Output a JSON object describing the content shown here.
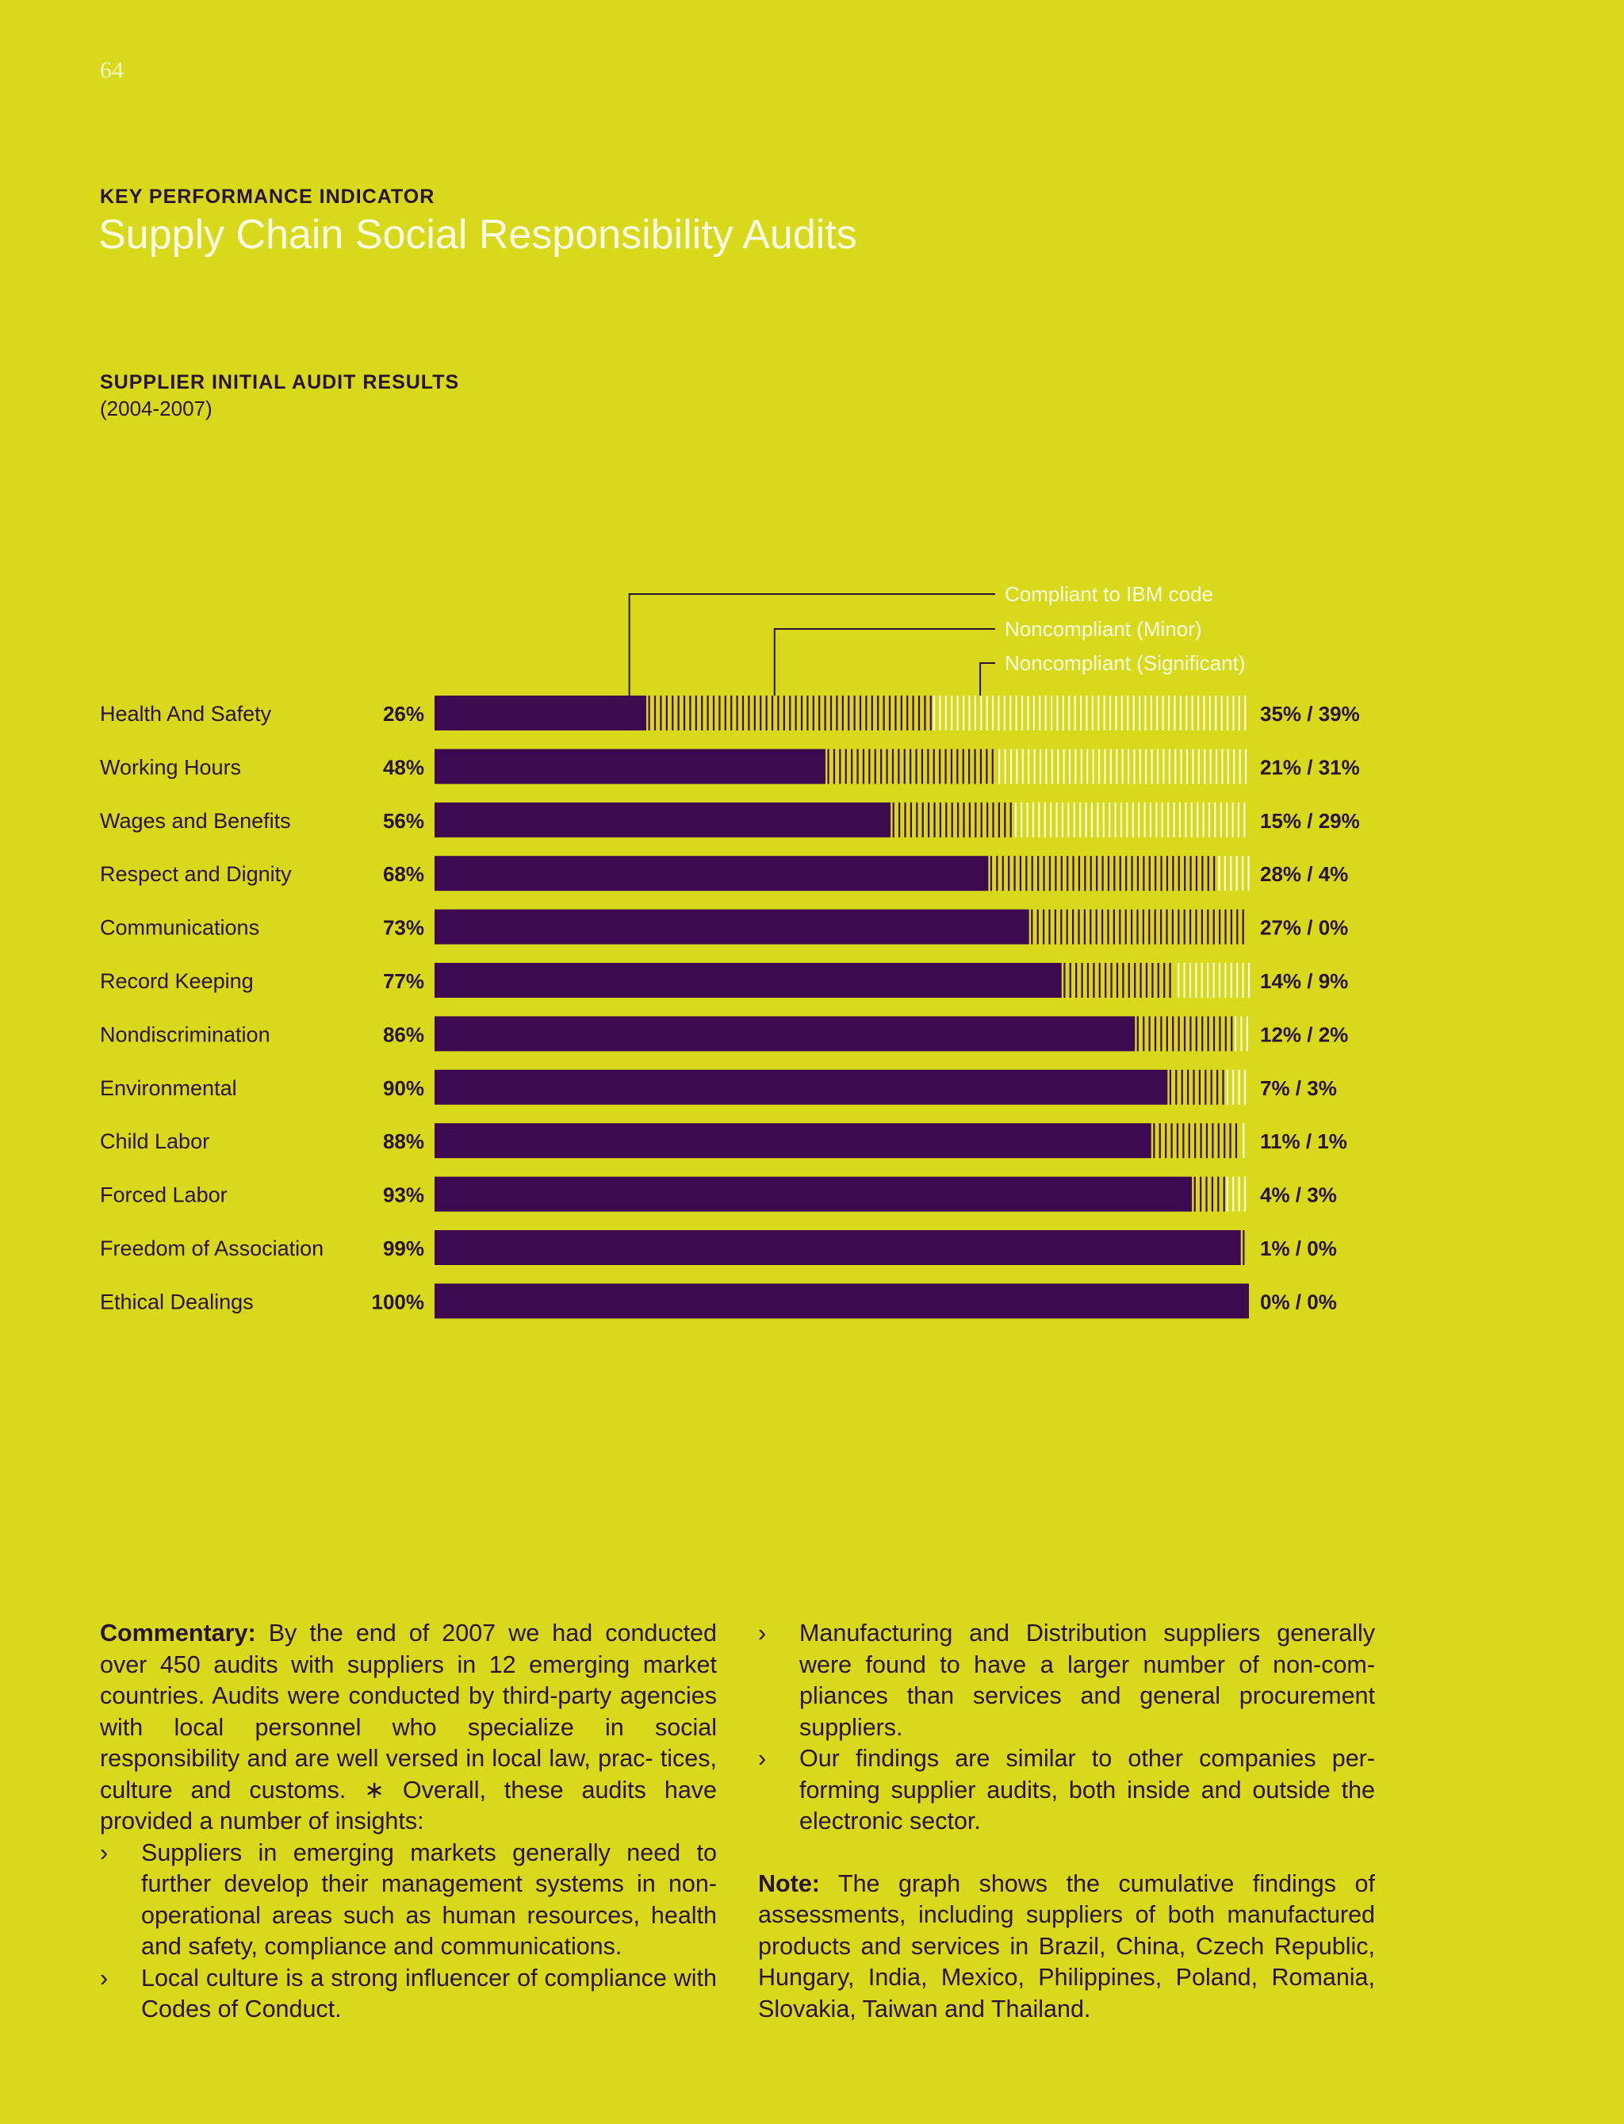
{
  "page_number": "64",
  "header": {
    "kicker": "KEY PERFORMANCE INDICATOR",
    "title": "Supply Chain Social Responsibility Audits"
  },
  "chart_heading": {
    "title": "SUPPLIER INITIAL AUDIT RESULTS",
    "range": "(2004-2007)"
  },
  "chart_data": {
    "type": "bar",
    "stacked": true,
    "orientation": "horizontal",
    "title": "SUPPLIER INITIAL AUDIT RESULTS",
    "subtitle": "(2004-2007)",
    "legend_position": "top-right",
    "categories": [
      "Health And Safety",
      "Working Hours",
      "Wages and Benefits",
      "Respect and Dignity",
      "Communications",
      "Record Keeping",
      "Nondiscrimination",
      "Environmental",
      "Child Labor",
      "Forced Labor",
      "Freedom of Association",
      "Ethical Dealings"
    ],
    "series": [
      {
        "name": "Compliant to IBM code",
        "color": "#3d0a52",
        "values": [
          26,
          48,
          56,
          68,
          73,
          77,
          86,
          90,
          88,
          93,
          99,
          100
        ],
        "labels": [
          "26%",
          "48%",
          "56%",
          "68%",
          "73%",
          "77%",
          "86%",
          "90%",
          "88%",
          "93%",
          "99%",
          "100%"
        ]
      },
      {
        "name": "Noncompliant (Minor)",
        "color": "#3d0a52",
        "values": [
          35,
          21,
          15,
          28,
          27,
          14,
          12,
          7,
          11,
          4,
          1,
          0
        ]
      },
      {
        "name": "Noncompliant (Significant)",
        "color": "#fbfbe6",
        "values": [
          39,
          31,
          29,
          4,
          0,
          9,
          2,
          3,
          1,
          3,
          0,
          0
        ]
      }
    ],
    "right_labels": [
      "35% / 39%",
      "21% / 31%",
      "15% / 29%",
      "28% / 4%",
      "27% / 0%",
      "14% / 9%",
      "12% / 2%",
      "7% / 3%",
      "11% / 1%",
      "4% / 3%",
      "1% / 0%",
      "0% / 0%"
    ],
    "xlim": [
      0,
      100
    ]
  },
  "commentary": {
    "lead": "Commentary:",
    "text": "By the end of 2007 we had conducted over 450 audits with suppliers in 12 emerging market countries. Audits were conducted by third-party agencies with local personnel who specialize in social responsibility and are well versed in local law, prac- tices, culture and customs. ∗ Overall, these audits have provided a number of insights:",
    "bullet_glyph": "›",
    "bullets_left": [
      "Suppliers in emerging markets generally need to further develop their management systems in non- operational areas such as human resources, health and safety, compliance and communications.",
      "Local culture is a strong influencer of compliance with Codes of Conduct."
    ],
    "bullets_right": [
      "Manufacturing and Distribution suppliers generally were found to have a larger number of non-com- pliances than services and general procurement suppliers.",
      "Our findings are similar to other companies per- forming supplier audits, both inside and outside the electronic sector."
    ]
  },
  "note": {
    "lead": "Note:",
    "text": "The graph shows the cumulative findings of assessments, including suppliers of both manufactured products and services in Brazil, China, Czech Republic, Hungary, India, Mexico, Philippines, Poland, Romania, Slovakia, Taiwan and Thailand."
  }
}
